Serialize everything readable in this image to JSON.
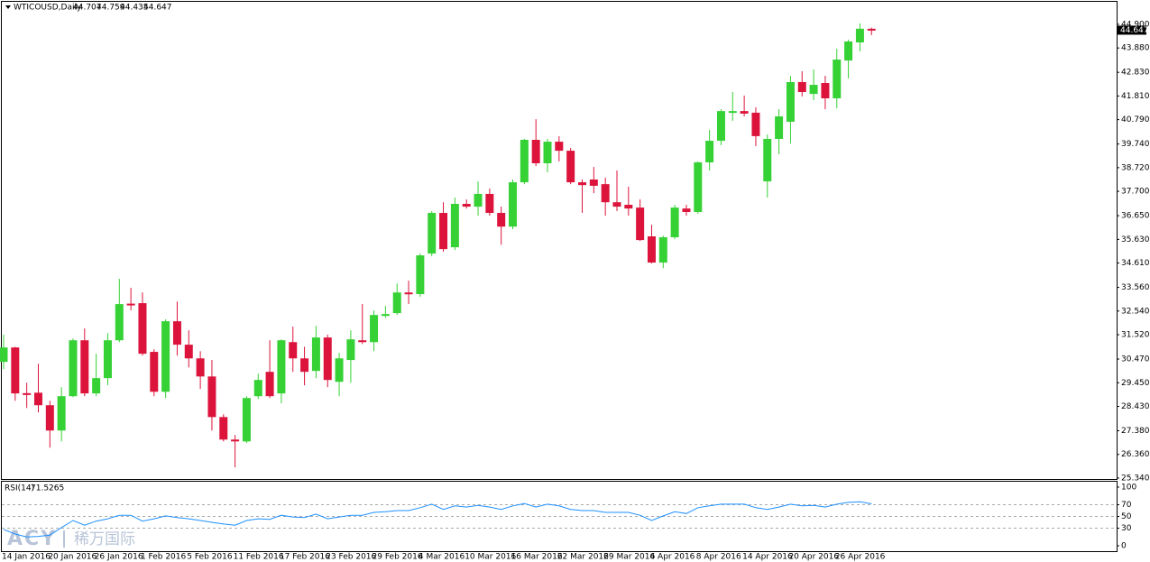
{
  "chart_data": [
    {
      "type": "candlestick",
      "title": "WTICOUSD,Daily",
      "categories": [
        "14 Jan 2016",
        null,
        null,
        null,
        "20 Jan 2016",
        null,
        null,
        null,
        "26 Jan 2016",
        null,
        null,
        null,
        "1 Feb 2016",
        null,
        null,
        null,
        "5 Feb 2016",
        null,
        null,
        null,
        "11 Feb 2016",
        null,
        null,
        null,
        "17 Feb 2016",
        null,
        null,
        null,
        "23 Feb 2016",
        null,
        null,
        null,
        "29 Feb 2016",
        null,
        null,
        null,
        "4 Mar 2016",
        null,
        null,
        null,
        "10 Mar 2016",
        null,
        null,
        null,
        "16 Mar 2016",
        null,
        null,
        null,
        "22 Mar 2016",
        null,
        null,
        null,
        "29 Mar 2016",
        null,
        null,
        null,
        "4 Apr 2016",
        null,
        null,
        null,
        "8 Apr 2016",
        null,
        null,
        null,
        "14 Apr 2016",
        null,
        null,
        null,
        "20 Apr 2016",
        null,
        null,
        null,
        "26 Apr 2016",
        null,
        null,
        null
      ],
      "open": [
        30.35,
        30.97,
        29.0,
        29.02,
        28.48,
        27.39,
        28.87,
        31.28,
        28.99,
        29.65,
        31.28,
        32.86,
        32.88,
        30.78,
        29.06,
        32.1,
        31.09,
        30.5,
        29.72,
        27.97,
        27.0,
        26.92,
        28.87,
        29.92,
        28.99,
        31.2,
        30.5,
        29.96,
        31.4,
        29.49,
        30.43,
        31.28,
        31.2,
        32.33,
        32.45,
        33.34,
        33.27,
        35.02,
        36.77,
        35.29,
        37.16,
        37.04,
        37.59,
        36.77,
        36.18,
        38.09,
        39.92,
        38.91,
        39.84,
        39.45,
        38.09,
        38.21,
        38.01,
        37.23,
        37.12,
        37.0,
        35.76,
        34.63,
        35.72,
        36.96,
        36.81,
        38.95,
        39.88,
        41.09,
        41.16,
        41.09,
        38.13,
        39.96,
        40.7,
        42.41,
        41.9,
        42.37,
        41.71,
        43.34,
        44.12,
        44.707
      ],
      "high": [
        31.52,
        31.0,
        29.45,
        30.27,
        28.67,
        29.26,
        31.36,
        31.79,
        30.7,
        31.59,
        33.93,
        33.54,
        33.34,
        30.89,
        32.18,
        32.95,
        31.71,
        30.81,
        30.43,
        28.09,
        27.2,
        28.87,
        29.84,
        31.28,
        31.32,
        31.87,
        31.0,
        31.9,
        31.52,
        30.74,
        31.71,
        32.84,
        32.57,
        32.76,
        33.73,
        33.85,
        35.02,
        36.85,
        37.23,
        37.43,
        37.35,
        38.13,
        37.82,
        37.04,
        38.21,
        39.96,
        40.81,
        39.96,
        40.08,
        39.57,
        38.21,
        38.75,
        38.29,
        38.6,
        37.9,
        37.35,
        36.26,
        35.79,
        37.12,
        37.12,
        38.99,
        40.35,
        41.24,
        41.98,
        41.83,
        41.32,
        40.15,
        41.24,
        42.68,
        42.88,
        42.95,
        42.68,
        43.85,
        44.24,
        44.94,
        44.759
      ],
      "low": [
        30.04,
        28.67,
        28.36,
        28.17,
        26.65,
        26.92,
        28.83,
        28.87,
        28.87,
        29.34,
        31.2,
        32.57,
        30.62,
        28.87,
        28.79,
        30.62,
        30.11,
        29.18,
        27.39,
        26.92,
        25.8,
        26.85,
        28.75,
        28.79,
        28.56,
        29.92,
        29.34,
        29.65,
        29.26,
        28.87,
        29.45,
        31.12,
        30.81,
        32.25,
        32.37,
        32.84,
        33.15,
        34.9,
        35.1,
        35.17,
        36.96,
        36.65,
        36.65,
        35.4,
        36.07,
        38.01,
        38.79,
        38.52,
        38.99,
        38.01,
        36.77,
        37.62,
        36.65,
        36.85,
        36.65,
        35.56,
        34.59,
        34.39,
        35.64,
        36.65,
        36.73,
        38.6,
        39.69,
        40.74,
        40.93,
        39.65,
        37.43,
        39.3,
        39.76,
        41.79,
        41.63,
        41.24,
        41.28,
        42.57,
        43.73,
        44.435
      ],
      "close": [
        30.97,
        28.99,
        28.98,
        28.48,
        27.39,
        28.87,
        31.28,
        28.99,
        29.65,
        31.28,
        32.84,
        32.8,
        30.7,
        29.06,
        32.1,
        31.09,
        30.5,
        29.72,
        27.97,
        27.0,
        26.92,
        28.79,
        29.57,
        28.87,
        31.28,
        30.5,
        29.92,
        31.4,
        29.57,
        30.5,
        31.32,
        31.2,
        32.37,
        32.41,
        33.34,
        33.27,
        34.94,
        36.77,
        35.21,
        37.16,
        37.04,
        37.59,
        36.77,
        36.18,
        38.09,
        39.92,
        38.91,
        39.84,
        39.45,
        38.09,
        37.97,
        37.94,
        37.23,
        37.04,
        36.96,
        35.6,
        34.63,
        35.72,
        37.0,
        36.81,
        38.95,
        39.88,
        41.16,
        41.16,
        41.05,
        40.08,
        39.96,
        40.93,
        42.41,
        41.98,
        42.29,
        41.71,
        43.38,
        44.16,
        44.71,
        44.647
      ],
      "up_color": "#35d135",
      "down_color": "#dc143c",
      "ylim": [
        25.3,
        45.87
      ],
      "yticks": [
        {
          "value": 44.9,
          "label": "44.900"
        },
        {
          "value": 43.88,
          "label": "43.880"
        },
        {
          "value": 42.83,
          "label": "42.830"
        },
        {
          "value": 41.81,
          "label": "41.810"
        },
        {
          "value": 40.79,
          "label": "40.790"
        },
        {
          "value": 39.74,
          "label": "39.740"
        },
        {
          "value": 38.72,
          "label": "38.720"
        },
        {
          "value": 37.7,
          "label": "37.700"
        },
        {
          "value": 36.65,
          "label": "36.650"
        },
        {
          "value": 35.63,
          "label": "35.630"
        },
        {
          "value": 34.61,
          "label": "34.610"
        },
        {
          "value": 33.56,
          "label": "33.560"
        },
        {
          "value": 32.54,
          "label": "32.540"
        },
        {
          "value": 31.52,
          "label": "31.520"
        },
        {
          "value": 30.47,
          "label": "30.470"
        },
        {
          "value": 29.45,
          "label": "29.450"
        },
        {
          "value": 28.43,
          "label": "28.430"
        },
        {
          "value": 27.38,
          "label": "27.380"
        },
        {
          "value": 26.36,
          "label": "26.360"
        },
        {
          "value": 25.34,
          "label": "25.340"
        }
      ]
    },
    {
      "type": "line",
      "title": "RSI(14)",
      "color": "#1e90ff",
      "values": [
        28,
        20,
        15,
        16,
        18,
        31,
        43,
        35,
        42,
        46,
        52,
        52,
        42,
        46,
        51,
        48,
        46,
        43,
        40,
        37,
        35,
        43,
        46,
        45,
        52,
        49,
        48,
        54,
        46,
        49,
        52,
        52,
        57,
        58,
        60,
        60,
        65,
        71,
        62,
        68,
        66,
        69,
        66,
        62,
        68,
        72,
        66,
        71,
        68,
        62,
        60,
        60,
        57,
        57,
        57,
        52,
        43,
        51,
        58,
        55,
        65,
        68,
        71,
        71,
        71,
        65,
        62,
        66,
        71,
        68,
        69,
        66,
        71,
        74,
        75,
        71.5265
      ],
      "ylim": [
        -10.8,
        110.8
      ],
      "yticks": [
        100,
        70,
        50,
        30,
        0
      ],
      "levels": [
        70,
        50,
        30
      ]
    }
  ],
  "watermark": {
    "brand": "ACY",
    "name": "稀万国际"
  }
}
